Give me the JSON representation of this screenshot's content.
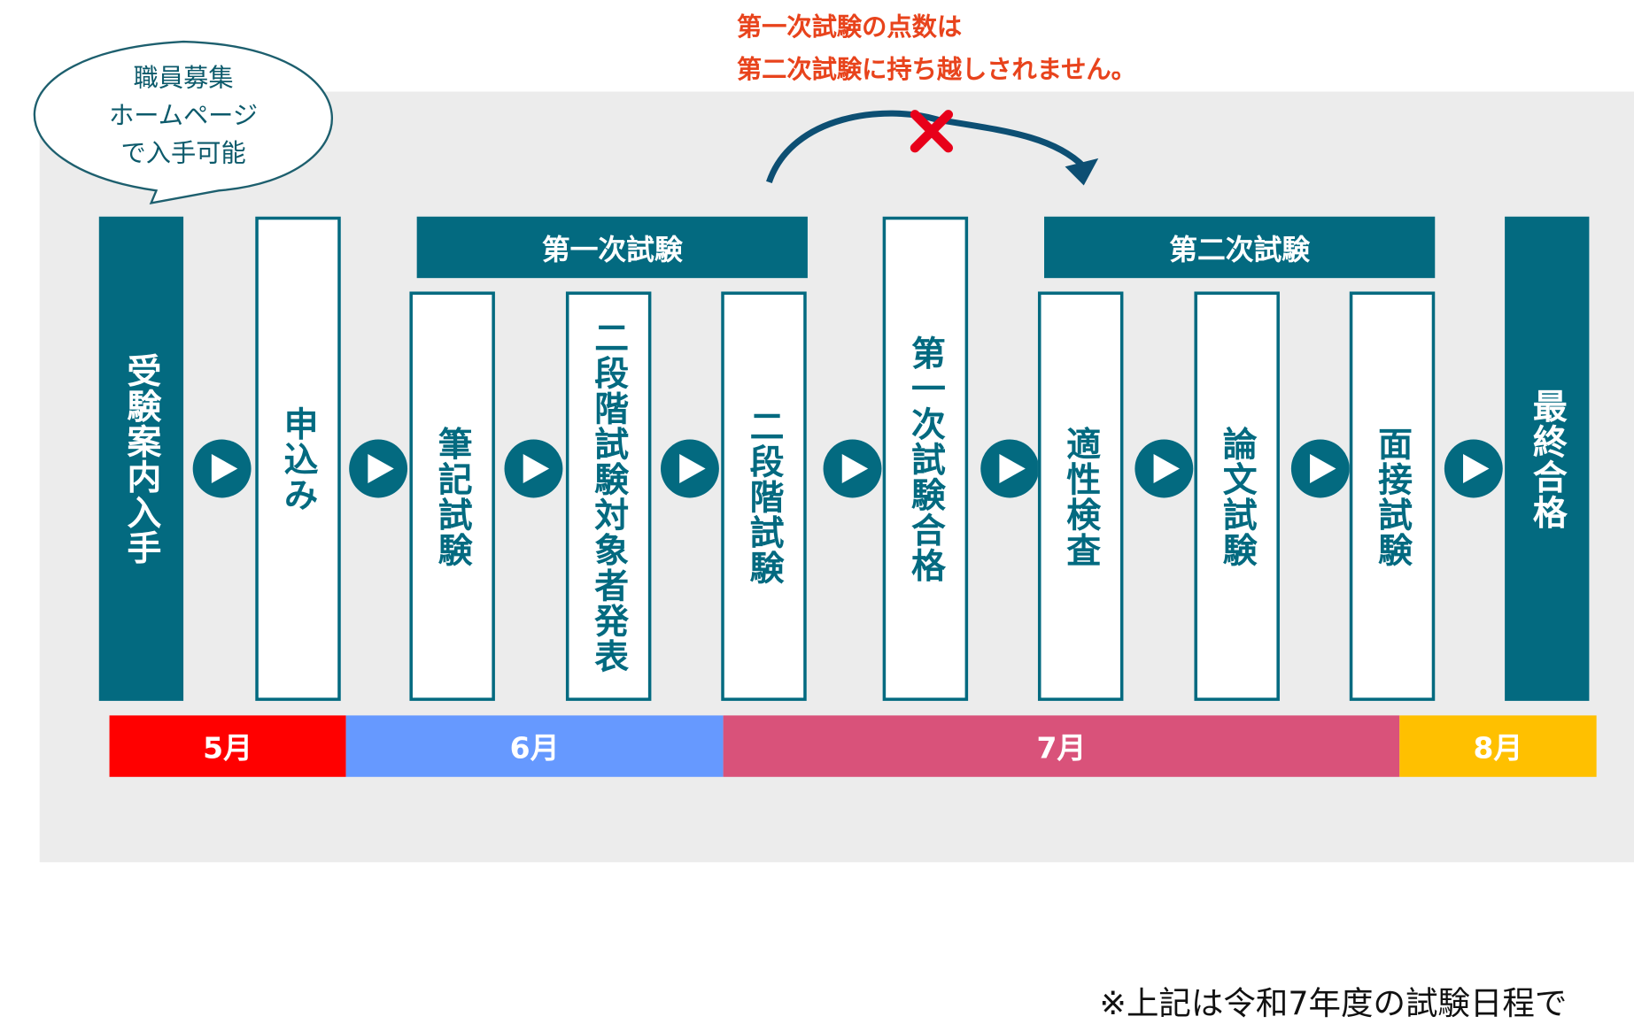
{
  "callout": {
    "lines": [
      "職員募集",
      "ホームページ",
      "で入手可能"
    ]
  },
  "note": {
    "lines": [
      "第一次試験の点数は",
      "第二次試験に持ち越しされません。"
    ]
  },
  "groups": [
    {
      "title": "第一次試験"
    },
    {
      "title": "第二次試験"
    }
  ],
  "steps": [
    {
      "label": "受験案内入手"
    },
    {
      "label": "申込み"
    },
    {
      "label": "筆記試験"
    },
    {
      "label": "二段階試験対象者発表"
    },
    {
      "label": "二段階試験"
    },
    {
      "label": "第一次試験合格"
    },
    {
      "label": "適性検査"
    },
    {
      "label": "論文試験"
    },
    {
      "label": "面接試験"
    },
    {
      "label": "最終合格"
    }
  ],
  "months": [
    "5月",
    "6月",
    "7月",
    "8月"
  ],
  "footnote": "※上記は令和7年度の試験日程で"
}
